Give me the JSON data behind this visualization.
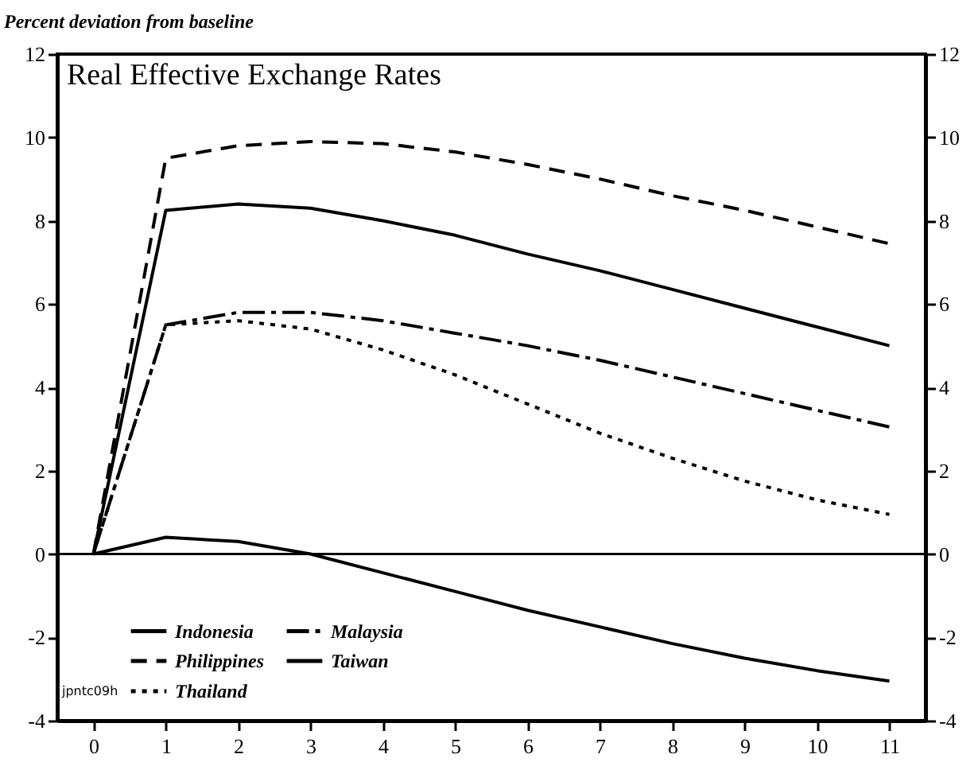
{
  "chart_data": {
    "type": "line",
    "title": "Real Effective Exchange Rates",
    "ylabel": "Percent deviation from baseline",
    "x": [
      0,
      1,
      2,
      3,
      4,
      5,
      6,
      7,
      8,
      9,
      10,
      11
    ],
    "series": [
      {
        "name": "Indonesia",
        "color": "#000000",
        "line_style": "solid",
        "values": [
          0,
          0.4,
          0.3,
          0.0,
          -0.45,
          -0.9,
          -1.35,
          -1.75,
          -2.15,
          -2.5,
          -2.8,
          -3.05
        ]
      },
      {
        "name": "Philippines",
        "color": "#000000",
        "line_style": "dashed",
        "values": [
          0,
          9.5,
          9.8,
          9.9,
          9.85,
          9.65,
          9.35,
          9.0,
          8.6,
          8.25,
          7.85,
          7.45
        ]
      },
      {
        "name": "Thailand",
        "color": "#000000",
        "line_style": "dotted",
        "values": [
          0,
          5.5,
          5.6,
          5.4,
          4.9,
          4.3,
          3.6,
          2.9,
          2.3,
          1.75,
          1.3,
          0.95
        ]
      },
      {
        "name": "Malaysia",
        "color": "#000000",
        "line_style": "dashdot",
        "values": [
          0,
          5.5,
          5.8,
          5.8,
          5.6,
          5.3,
          5.0,
          4.65,
          4.25,
          3.85,
          3.45,
          3.05
        ]
      },
      {
        "name": "Taiwan",
        "color": "#000000",
        "line_style": "solid",
        "values": [
          0,
          8.25,
          8.4,
          8.3,
          8.0,
          7.65,
          7.2,
          6.8,
          6.35,
          5.9,
          5.45,
          5.0
        ]
      }
    ],
    "xlim": [
      -0.5,
      11.5
    ],
    "xticks": [
      0,
      1,
      2,
      3,
      4,
      5,
      6,
      7,
      8,
      9,
      10,
      11
    ],
    "ylim": [
      -4,
      12
    ],
    "yticks": [
      -4,
      -2,
      0,
      2,
      4,
      6,
      8,
      10,
      12
    ],
    "y2lim": [
      -4,
      12
    ],
    "y2ticks": [
      -4,
      -2,
      0,
      2,
      4,
      6,
      8,
      10,
      12
    ],
    "ref_lines": [
      {
        "axis": "y",
        "value": 0,
        "color": "#000000"
      }
    ],
    "legend": "bottom left",
    "annotations": [
      "jpntc09h"
    ]
  }
}
